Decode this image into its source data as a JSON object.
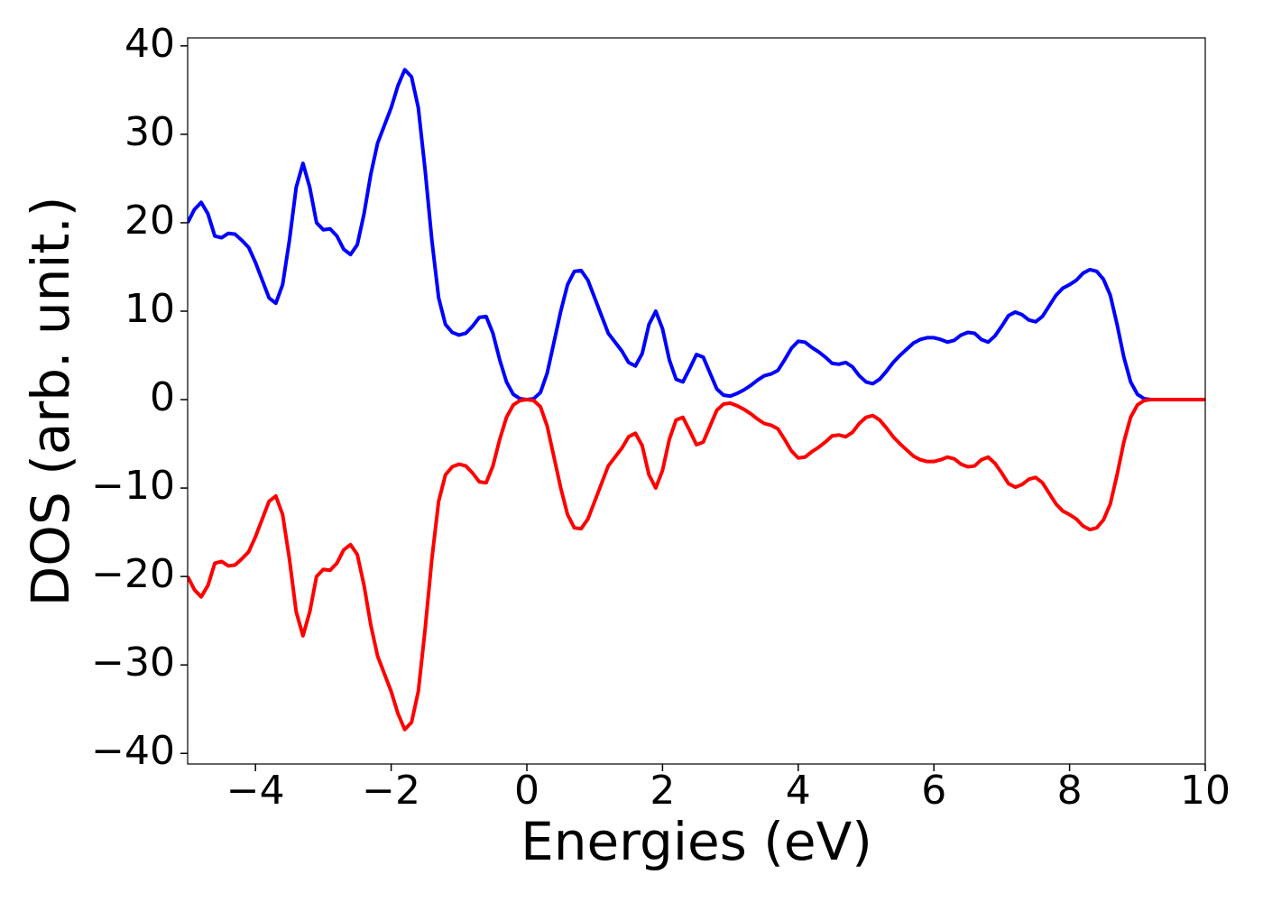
{
  "chart_data": {
    "type": "line",
    "xlabel": "Energies (eV)",
    "ylabel": "DOS (arb. unit.)",
    "x": [
      -5,
      -4.9,
      -4.8,
      -4.7,
      -4.6,
      -4.5,
      -4.4,
      -4.3,
      -4.2,
      -4.1,
      -4,
      -3.9,
      -3.8,
      -3.7,
      -3.6,
      -3.5,
      -3.4,
      -3.3,
      -3.2,
      -3.1,
      -3,
      -2.9,
      -2.8,
      -2.7,
      -2.6,
      -2.5,
      -2.4,
      -2.3,
      -2.2,
      -2.1,
      -2,
      -1.9,
      -1.8,
      -1.7,
      -1.6,
      -1.5,
      -1.4,
      -1.3,
      -1.2,
      -1.1,
      -1,
      -0.9,
      -0.8,
      -0.7,
      -0.6,
      -0.5,
      -0.4,
      -0.3,
      -0.2,
      -0.1,
      0,
      0.1,
      0.2,
      0.3,
      0.4,
      0.5,
      0.6,
      0.7,
      0.8,
      0.9,
      1,
      1.1,
      1.2,
      1.3,
      1.4,
      1.5,
      1.6,
      1.7,
      1.8,
      1.9,
      2,
      2.1,
      2.2,
      2.3,
      2.4,
      2.5,
      2.6,
      2.7,
      2.8,
      2.9,
      3,
      3.1,
      3.2,
      3.3,
      3.4,
      3.5,
      3.6,
      3.7,
      3.8,
      3.9,
      4,
      4.1,
      4.2,
      4.3,
      4.4,
      4.5,
      4.6,
      4.7,
      4.8,
      4.9,
      5,
      5.1,
      5.2,
      5.3,
      5.4,
      5.5,
      5.6,
      5.7,
      5.8,
      5.9,
      6,
      6.1,
      6.2,
      6.3,
      6.4,
      6.5,
      6.6,
      6.7,
      6.8,
      6.9,
      7,
      7.1,
      7.2,
      7.3,
      7.4,
      7.5,
      7.6,
      7.7,
      7.8,
      7.9,
      8,
      8.1,
      8.2,
      8.3,
      8.4,
      8.5,
      8.6,
      8.7,
      8.8,
      8.9,
      9,
      9.1,
      9.2,
      9.3,
      9.4,
      9.5,
      9.6,
      9.7,
      9.8,
      9.9,
      10
    ],
    "series": [
      {
        "color": "#0000ff",
        "values": [
          20,
          21.5,
          22.3,
          21,
          18.5,
          18.3,
          18.8,
          18.7,
          18,
          17.2,
          15.5,
          13.5,
          11.5,
          10.9,
          13,
          18,
          24,
          26.7,
          24,
          20,
          19.2,
          19.3,
          18.5,
          17,
          16.4,
          17.5,
          21,
          25.5,
          29,
          31,
          33,
          35.5,
          37.3,
          36.5,
          33,
          26,
          18,
          11.5,
          8.5,
          7.6,
          7.3,
          7.5,
          8.3,
          9.3,
          9.4,
          7.5,
          4.5,
          2,
          0.6,
          0.1,
          0,
          0.1,
          0.8,
          3,
          6.5,
          10,
          13,
          14.5,
          14.6,
          13.5,
          11.5,
          9.5,
          7.5,
          6.5,
          5.5,
          4.2,
          3.8,
          5.2,
          8.5,
          10,
          8,
          4.5,
          2.3,
          2,
          3.5,
          5.1,
          4.8,
          3,
          1.2,
          0.5,
          0.4,
          0.7,
          1.1,
          1.6,
          2.2,
          2.7,
          2.9,
          3.3,
          4.5,
          5.8,
          6.6,
          6.5,
          5.9,
          5.4,
          4.8,
          4.1,
          4,
          4.2,
          3.7,
          2.7,
          2,
          1.8,
          2.3,
          3.2,
          4.2,
          5,
          5.7,
          6.4,
          6.8,
          7,
          7,
          6.8,
          6.5,
          6.7,
          7.3,
          7.6,
          7.5,
          6.8,
          6.5,
          7.2,
          8.3,
          9.5,
          9.9,
          9.6,
          9,
          8.8,
          9.4,
          10.6,
          11.8,
          12.6,
          13,
          13.5,
          14.3,
          14.7,
          14.5,
          13.6,
          11.8,
          8.5,
          4.8,
          2,
          0.6,
          0.1,
          0,
          0,
          0,
          0,
          0,
          0,
          0,
          0,
          0
        ]
      },
      {
        "color": "#ff0000",
        "values": [
          -20,
          -21.5,
          -22.3,
          -21,
          -18.5,
          -18.3,
          -18.8,
          -18.7,
          -18,
          -17.2,
          -15.5,
          -13.5,
          -11.5,
          -10.9,
          -13,
          -18,
          -24,
          -26.7,
          -24,
          -20,
          -19.2,
          -19.3,
          -18.5,
          -17,
          -16.4,
          -17.5,
          -21,
          -25.5,
          -29,
          -31,
          -33,
          -35.5,
          -37.3,
          -36.5,
          -33,
          -26,
          -18,
          -11.5,
          -8.5,
          -7.6,
          -7.3,
          -7.5,
          -8.3,
          -9.3,
          -9.4,
          -7.5,
          -4.5,
          -2,
          -0.6,
          -0.1,
          0,
          -0.1,
          -0.8,
          -3,
          -6.5,
          -10,
          -13,
          -14.5,
          -14.6,
          -13.5,
          -11.5,
          -9.5,
          -7.5,
          -6.5,
          -5.5,
          -4.2,
          -3.8,
          -5.2,
          -8.5,
          -10,
          -8,
          -4.5,
          -2.3,
          -2,
          -3.5,
          -5.1,
          -4.8,
          -3,
          -1.2,
          -0.5,
          -0.4,
          -0.7,
          -1.1,
          -1.6,
          -2.2,
          -2.7,
          -2.9,
          -3.3,
          -4.5,
          -5.8,
          -6.6,
          -6.5,
          -5.9,
          -5.4,
          -4.8,
          -4.1,
          -4,
          -4.2,
          -3.7,
          -2.7,
          -2,
          -1.8,
          -2.3,
          -3.2,
          -4.2,
          -5,
          -5.7,
          -6.4,
          -6.8,
          -7,
          -7,
          -6.8,
          -6.5,
          -6.7,
          -7.3,
          -7.6,
          -7.5,
          -6.8,
          -6.5,
          -7.2,
          -8.3,
          -9.5,
          -9.9,
          -9.6,
          -9,
          -8.8,
          -9.4,
          -10.6,
          -11.8,
          -12.6,
          -13,
          -13.5,
          -14.3,
          -14.7,
          -14.5,
          -13.6,
          -11.8,
          -8.5,
          -4.8,
          -2,
          -0.6,
          -0.1,
          0,
          0,
          0,
          0,
          0,
          0,
          0,
          0,
          0
        ]
      }
    ],
    "xlim": [
      -5,
      10
    ],
    "xticks": [
      {
        "value": -4,
        "label": "−4"
      },
      {
        "value": -2,
        "label": "−2"
      },
      0,
      2,
      4,
      6,
      8,
      10
    ],
    "ylim": [
      -41.2,
      40.9
    ],
    "yticks": [
      {
        "value": -40,
        "label": "−40"
      },
      {
        "value": -30,
        "label": "−30"
      },
      {
        "value": -20,
        "label": "−20"
      },
      {
        "value": -10,
        "label": "−10"
      },
      0,
      10,
      20,
      30,
      40
    ],
    "grid": false
  }
}
